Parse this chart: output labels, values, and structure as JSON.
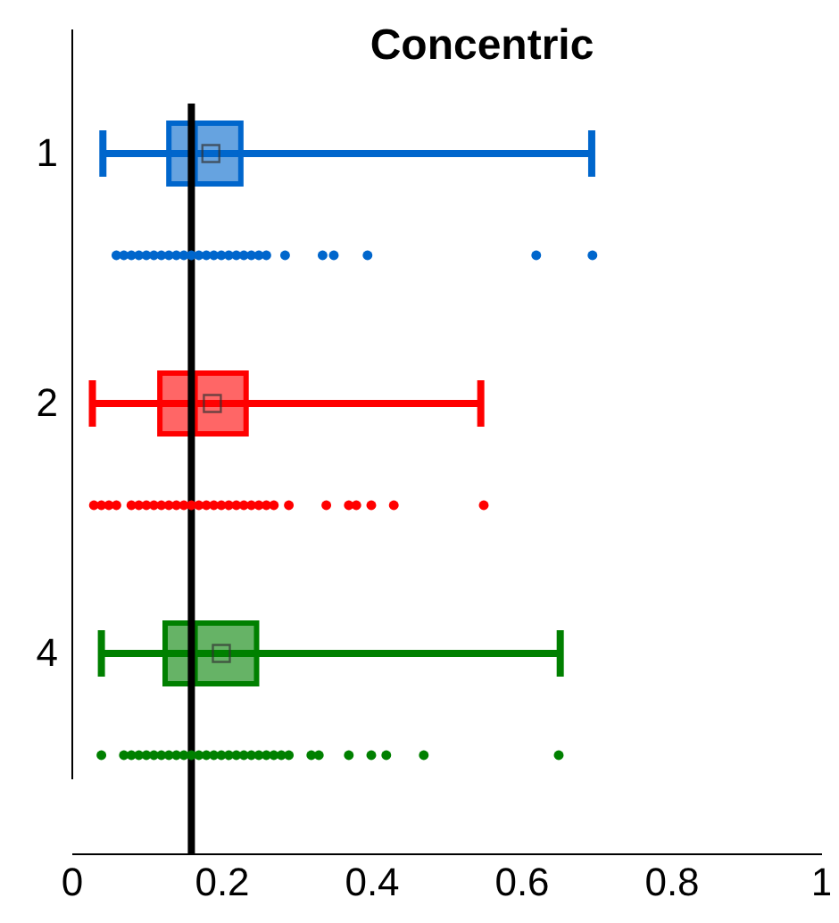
{
  "chart_data": {
    "type": "box",
    "title": "Concentric",
    "orientation": "horizontal",
    "categories": [
      "1",
      "2",
      "4"
    ],
    "colors": [
      "#0066cc",
      "#ff0000",
      "#008000"
    ],
    "boxes": [
      {
        "low": 0.042,
        "q1": 0.13,
        "median": 0.165,
        "q3": 0.226,
        "high": 0.694,
        "mean": 0.186
      },
      {
        "low": 0.028,
        "q1": 0.118,
        "median": 0.165,
        "q3": 0.233,
        "high": 0.546,
        "mean": 0.188
      },
      {
        "low": 0.04,
        "q1": 0.125,
        "median": 0.165,
        "q3": 0.247,
        "high": 0.652,
        "mean": 0.2
      }
    ],
    "series": [
      {
        "type": "scatter",
        "color": "#0066cc",
        "x": [
          "1",
          "1",
          "1",
          "1",
          "1",
          "1",
          "1",
          "1",
          "1",
          "1",
          "1",
          "1",
          "1",
          "1",
          "1",
          "1",
          "1",
          "1",
          "1",
          "1",
          "1",
          "1",
          "1",
          "1",
          "1",
          "1",
          "1"
        ],
        "values": [
          0.06,
          0.07,
          0.08,
          0.09,
          0.1,
          0.11,
          0.12,
          0.13,
          0.14,
          0.15,
          0.16,
          0.17,
          0.18,
          0.19,
          0.2,
          0.21,
          0.22,
          0.23,
          0.24,
          0.25,
          0.26,
          0.285,
          0.335,
          0.35,
          0.395,
          0.62,
          0.695
        ]
      },
      {
        "type": "scatter",
        "color": "#ff0000",
        "x": [
          "2",
          "2",
          "2",
          "2",
          "2",
          "2",
          "2",
          "2",
          "2",
          "2",
          "2",
          "2",
          "2",
          "2",
          "2",
          "2",
          "2",
          "2",
          "2",
          "2",
          "2",
          "2",
          "2",
          "2",
          "2",
          "2",
          "2",
          "2",
          "2",
          "2",
          "2"
        ],
        "values": [
          0.03,
          0.04,
          0.05,
          0.06,
          0.08,
          0.09,
          0.1,
          0.11,
          0.12,
          0.13,
          0.14,
          0.15,
          0.16,
          0.17,
          0.18,
          0.19,
          0.2,
          0.21,
          0.22,
          0.23,
          0.24,
          0.25,
          0.26,
          0.27,
          0.29,
          0.34,
          0.37,
          0.38,
          0.4,
          0.43,
          0.55
        ]
      },
      {
        "type": "scatter",
        "color": "#008000",
        "x": [
          "4",
          "4",
          "4",
          "4",
          "4",
          "4",
          "4",
          "4",
          "4",
          "4",
          "4",
          "4",
          "4",
          "4",
          "4",
          "4",
          "4",
          "4",
          "4",
          "4",
          "4",
          "4",
          "4",
          "4",
          "4",
          "4",
          "4",
          "4",
          "4",
          "4",
          "4"
        ],
        "values": [
          0.04,
          0.07,
          0.08,
          0.09,
          0.1,
          0.11,
          0.12,
          0.13,
          0.14,
          0.15,
          0.16,
          0.17,
          0.18,
          0.19,
          0.2,
          0.21,
          0.22,
          0.23,
          0.24,
          0.25,
          0.26,
          0.27,
          0.28,
          0.29,
          0.32,
          0.33,
          0.37,
          0.4,
          0.42,
          0.47,
          0.65
        ]
      }
    ],
    "xlim": [
      0,
      1
    ],
    "xticks": [
      0,
      0.2,
      0.4,
      0.6,
      0.8,
      1
    ],
    "ref_lines": [
      {
        "axis": "x",
        "value": 0.16,
        "color": "#000000"
      }
    ]
  }
}
